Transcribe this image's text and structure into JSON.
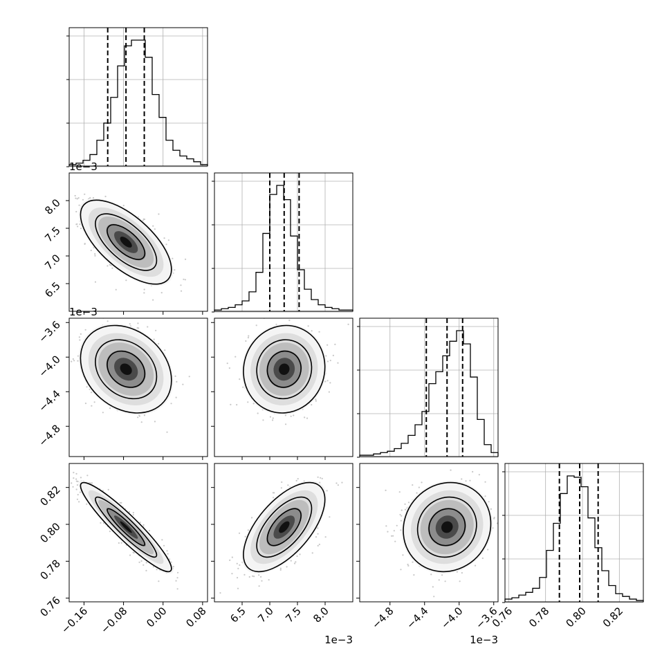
{
  "chart_data": {
    "type": "corner",
    "parameters": [
      {
        "range": [
          -0.19,
          0.09
        ],
        "ticks": [
          -0.16,
          -0.08,
          0.0,
          0.08
        ],
        "tick_labels": [
          "−0.16",
          "−0.08",
          "0.00",
          "0.08"
        ],
        "offset_label": "",
        "median": -0.075,
        "q16": -0.112,
        "q84": -0.038
      },
      {
        "range": [
          6.0,
          8.5
        ],
        "ticks": [
          6.5,
          7.0,
          7.5,
          8.0
        ],
        "tick_labels": [
          "6.5",
          "7.0",
          "7.5",
          "8.0"
        ],
        "offset_label": "1e−3",
        "median": 7.26,
        "q16": 7.0,
        "q84": 7.53
      },
      {
        "range": [
          -5.15,
          -3.55
        ],
        "ticks": [
          -4.8,
          -4.4,
          -4.0,
          -3.6
        ],
        "tick_labels": [
          "−4.8",
          "−4.4",
          "−4.0",
          "−3.6"
        ],
        "offset_label": "1e−3",
        "median": -4.14,
        "q16": -4.38,
        "q84": -3.96
      },
      {
        "range": [
          0.758,
          0.833
        ],
        "ticks": [
          0.76,
          0.78,
          0.8,
          0.82
        ],
        "tick_labels": [
          "0.76",
          "0.78",
          "0.80",
          "0.82"
        ],
        "offset_label": "",
        "median": 0.7985,
        "q16": 0.7875,
        "q84": 0.8085
      }
    ],
    "histograms": [
      [
        1,
        2,
        4,
        8,
        18,
        30,
        48,
        70,
        84,
        88,
        88,
        76,
        50,
        34,
        18,
        11,
        7,
        5,
        3,
        1
      ],
      [
        1,
        2,
        3,
        5,
        8,
        15,
        30,
        60,
        90,
        97,
        86,
        58,
        32,
        17,
        9,
        5,
        3,
        2,
        1,
        1
      ],
      [
        1,
        1,
        2,
        3,
        4,
        6,
        10,
        16,
        24,
        34,
        55,
        64,
        76,
        87,
        95,
        85,
        60,
        28,
        9,
        3
      ],
      [
        2,
        3,
        5,
        7,
        10,
        18,
        38,
        58,
        80,
        93,
        92,
        85,
        62,
        40,
        23,
        12,
        6,
        4,
        2,
        1
      ]
    ],
    "pairs": [
      {
        "x_param": 0,
        "y_param": 1,
        "mean": [
          -0.075,
          7.25
        ],
        "sd": [
          0.04,
          0.33
        ],
        "rho": -0.65
      },
      {
        "x_param": 0,
        "y_param": 2,
        "mean": [
          -0.075,
          -4.14
        ],
        "sd": [
          0.04,
          0.22
        ],
        "rho": -0.25
      },
      {
        "x_param": 1,
        "y_param": 2,
        "mean": [
          7.26,
          -4.14
        ],
        "sd": [
          0.32,
          0.22
        ],
        "rho": 0.05
      },
      {
        "x_param": 0,
        "y_param": 3,
        "mean": [
          -0.075,
          0.7985
        ],
        "sd": [
          0.04,
          0.0105
        ],
        "rho": -0.93
      },
      {
        "x_param": 1,
        "y_param": 3,
        "mean": [
          7.26,
          0.7985
        ],
        "sd": [
          0.32,
          0.0105
        ],
        "rho": 0.62
      },
      {
        "x_param": 2,
        "y_param": 3,
        "mean": [
          -4.14,
          0.7985
        ],
        "sd": [
          0.22,
          0.0105
        ],
        "rho": 0.08
      }
    ],
    "grid": true,
    "colors": {
      "line": "#000000",
      "grid": "#b0b0b0",
      "points": "#9e9e9e",
      "background": "#ffffff"
    }
  }
}
